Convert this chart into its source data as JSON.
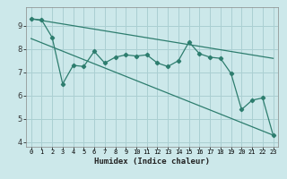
{
  "x": [
    0,
    1,
    2,
    3,
    4,
    5,
    6,
    7,
    8,
    9,
    10,
    11,
    12,
    13,
    14,
    15,
    16,
    17,
    18,
    19,
    20,
    21,
    22,
    23
  ],
  "line1": [
    9.3,
    9.25,
    8.5,
    6.5,
    7.3,
    7.25,
    7.9,
    7.4,
    7.65,
    7.75,
    7.7,
    7.75,
    7.4,
    7.25,
    7.5,
    8.3,
    7.8,
    7.65,
    7.6,
    6.95,
    5.4,
    5.8,
    5.9,
    4.3
  ],
  "line2_x": [
    0,
    23
  ],
  "line2_y": [
    9.3,
    7.6
  ],
  "line3_x": [
    0,
    23
  ],
  "line3_y": [
    8.45,
    4.3
  ],
  "color": "#2d7d6e",
  "bg_color": "#cce8ea",
  "grid_color": "#aacfd2",
  "xlabel": "Humidex (Indice chaleur)",
  "ylim": [
    3.8,
    9.8
  ],
  "xlim": [
    -0.5,
    23.5
  ],
  "yticks": [
    4,
    5,
    6,
    7,
    8,
    9
  ],
  "xticks": [
    0,
    1,
    2,
    3,
    4,
    5,
    6,
    7,
    8,
    9,
    10,
    11,
    12,
    13,
    14,
    15,
    16,
    17,
    18,
    19,
    20,
    21,
    22,
    23
  ],
  "xtick_labels": [
    "0",
    "1",
    "2",
    "3",
    "4",
    "5",
    "6",
    "7",
    "8",
    "9",
    "10",
    "11",
    "12",
    "13",
    "14",
    "15",
    "16",
    "17",
    "18",
    "19",
    "20",
    "21",
    "22",
    "23"
  ]
}
